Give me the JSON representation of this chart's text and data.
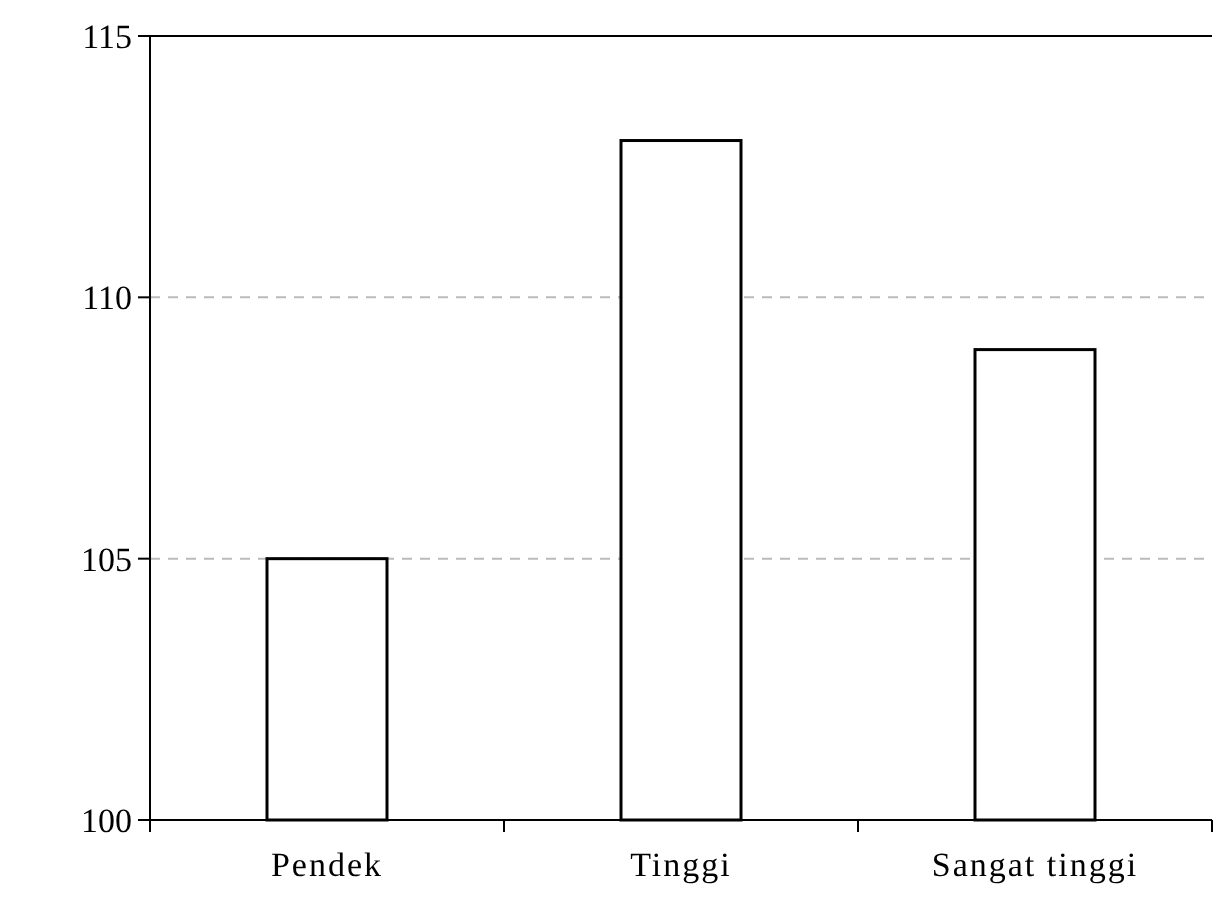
{
  "chart_data": {
    "type": "bar",
    "categories": [
      "Pendek",
      "Tinggi",
      "Sangat tinggi"
    ],
    "values": [
      105,
      113,
      109
    ],
    "color": "#ffffff",
    "ylim": [
      100,
      115
    ],
    "yticks": [
      100,
      105,
      110,
      115
    ],
    "grid": "y"
  }
}
